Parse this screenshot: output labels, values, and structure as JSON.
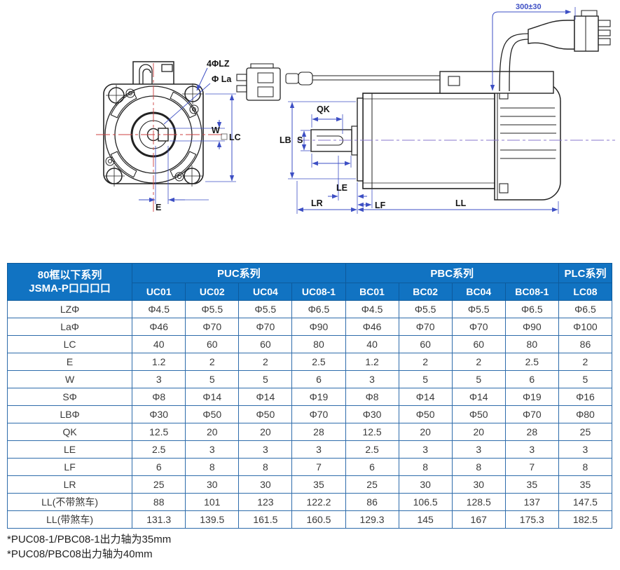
{
  "diagram": {
    "front_labels": {
      "bolt_holes": "4ΦLZ",
      "flange_diameter": "Φ La",
      "key_width": "W",
      "frame_size": "LC",
      "key_offset": "E"
    },
    "side_labels": {
      "key_length": "QK",
      "shaft_diameter": "S",
      "pilot_diameter": "LB",
      "le": "LE",
      "lr": "LR",
      "lf": "LF",
      "ll": "LL",
      "cable_length": "300±30"
    }
  },
  "table": {
    "corner_header": {
      "line1": "80框以下系列",
      "line2": "JSMA-P口口口口"
    },
    "groups": [
      {
        "label": "PUC系列",
        "span": 4
      },
      {
        "label": "PBC系列",
        "span": 4
      },
      {
        "label": "PLC系列",
        "span": 1
      }
    ],
    "columns": [
      "UC01",
      "UC02",
      "UC04",
      "UC08-1",
      "BC01",
      "BC02",
      "BC04",
      "BC08-1",
      "LC08"
    ],
    "rows": [
      {
        "label": "LZΦ",
        "values": [
          "Φ4.5",
          "Φ5.5",
          "Φ5.5",
          "Φ6.5",
          "Φ4.5",
          "Φ5.5",
          "Φ5.5",
          "Φ6.5",
          "Φ6.5"
        ]
      },
      {
        "label": "LaΦ",
        "values": [
          "Φ46",
          "Φ70",
          "Φ70",
          "Φ90",
          "Φ46",
          "Φ70",
          "Φ70",
          "Φ90",
          "Φ100"
        ]
      },
      {
        "label": "LC",
        "values": [
          "40",
          "60",
          "60",
          "80",
          "40",
          "60",
          "60",
          "80",
          "86"
        ]
      },
      {
        "label": "E",
        "values": [
          "1.2",
          "2",
          "2",
          "2.5",
          "1.2",
          "2",
          "2",
          "2.5",
          "2"
        ]
      },
      {
        "label": "W",
        "values": [
          "3",
          "5",
          "5",
          "6",
          "3",
          "5",
          "5",
          "6",
          "5"
        ]
      },
      {
        "label": "SΦ",
        "values": [
          "Φ8",
          "Φ14",
          "Φ14",
          "Φ19",
          "Φ8",
          "Φ14",
          "Φ14",
          "Φ19",
          "Φ16"
        ]
      },
      {
        "label": "LBΦ",
        "values": [
          "Φ30",
          "Φ50",
          "Φ50",
          "Φ70",
          "Φ30",
          "Φ50",
          "Φ50",
          "Φ70",
          "Φ80"
        ]
      },
      {
        "label": "QK",
        "values": [
          "12.5",
          "20",
          "20",
          "28",
          "12.5",
          "20",
          "20",
          "28",
          "25"
        ]
      },
      {
        "label": "LE",
        "values": [
          "2.5",
          "3",
          "3",
          "3",
          "2.5",
          "3",
          "3",
          "3",
          "3"
        ]
      },
      {
        "label": "LF",
        "values": [
          "6",
          "8",
          "8",
          "7",
          "6",
          "8",
          "8",
          "7",
          "8"
        ]
      },
      {
        "label": "LR",
        "values": [
          "25",
          "30",
          "30",
          "35",
          "25",
          "30",
          "30",
          "35",
          "35"
        ]
      },
      {
        "label": "LL(不带煞车)",
        "values": [
          "88",
          "101",
          "123",
          "122.2",
          "86",
          "106.5",
          "128.5",
          "137",
          "147.5"
        ]
      },
      {
        "label": "LL(带煞车)",
        "values": [
          "131.3",
          "139.5",
          "161.5",
          "160.5",
          "129.3",
          "145",
          "167",
          "175.3",
          "182.5"
        ]
      }
    ]
  },
  "footnotes": [
    "*PUC08-1/PBC08-1出力轴为35mm",
    "*PUC08/PBC08出力轴为40mm"
  ],
  "colors": {
    "header_bg": "#1173c2",
    "header_border": "#0d5a9c",
    "body_border": "#2e6cab",
    "dimension_line": "#3d4fc4",
    "centerline_red": "#cc4040",
    "centerline_purple": "#8877cc",
    "text": "#3a3a3a"
  }
}
